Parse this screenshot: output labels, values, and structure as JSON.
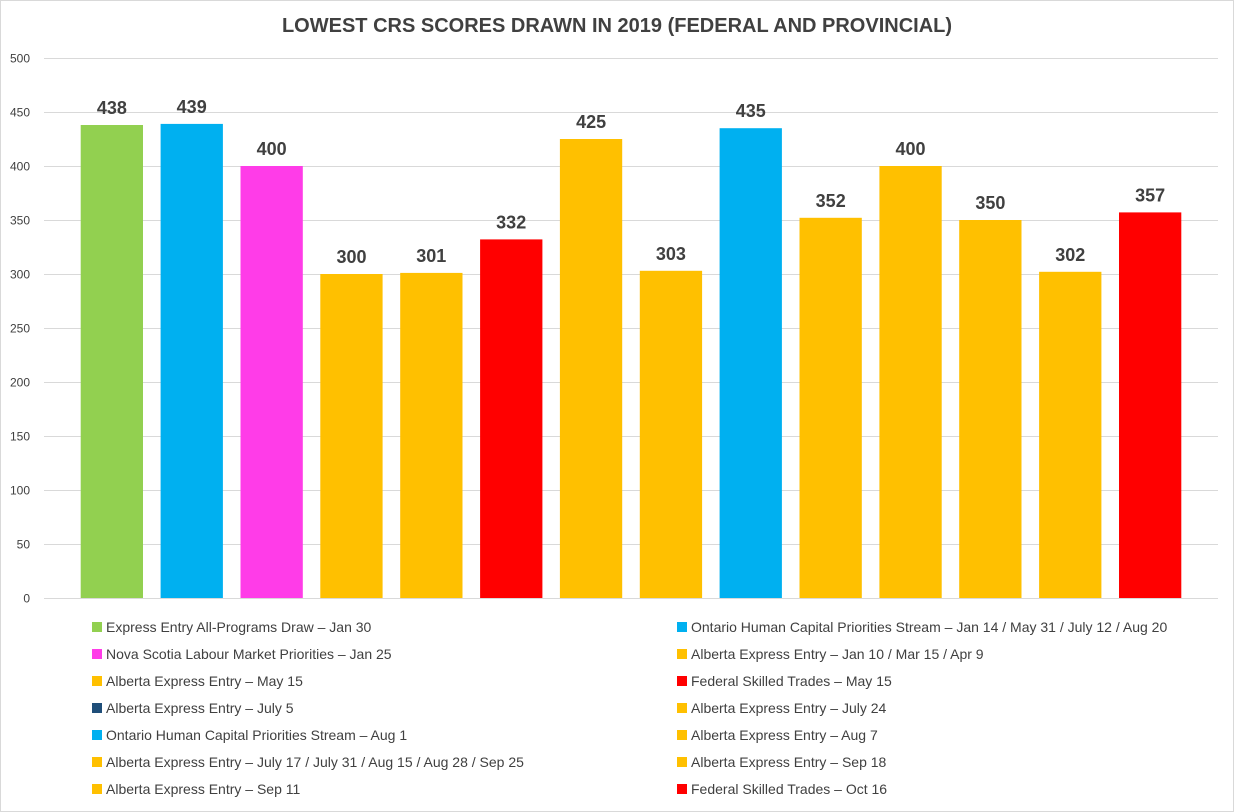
{
  "chart_data": {
    "type": "bar",
    "title": "LOWEST CRS SCORES DRAWN IN 2019 (FEDERAL AND PROVINCIAL)",
    "xlabel": "",
    "ylabel": "",
    "ylim": [
      0,
      500
    ],
    "yticks": [
      0,
      50,
      100,
      150,
      200,
      250,
      300,
      350,
      400,
      450,
      500
    ],
    "grid": true,
    "legend_placement": "bottom",
    "series": [
      {
        "name": "Express Entry All-Programs Draw – Jan 30",
        "value": 438,
        "color": "#92d050"
      },
      {
        "name": "Ontario Human Capital Priorities Stream – Jan 14 / May 31 / July 12 / Aug 20",
        "value": 439,
        "color": "#00b0f0"
      },
      {
        "name": "Nova Scotia Labour Market Priorities – Jan 25",
        "value": 400,
        "color": "#ff3ce8"
      },
      {
        "name": "Alberta Express Entry – Jan 10 / Mar 15 / Apr 9",
        "value": 300,
        "color": "#ffc000"
      },
      {
        "name": "Alberta Express Entry – May 15",
        "value": 301,
        "color": "#ffc000"
      },
      {
        "name": "Federal Skilled Trades – May 15",
        "value": 332,
        "color": "#ff0000"
      },
      {
        "name": "Alberta Express Entry – July 5",
        "value": 425,
        "color": "#ffc000",
        "legend_color": "#1f4e79"
      },
      {
        "name": "Alberta Express Entry – July 24",
        "value": 303,
        "color": "#ffc000"
      },
      {
        "name": "Ontario Human Capital Priorities Stream –  Aug 1",
        "value": 435,
        "color": "#00b0f0"
      },
      {
        "name": "Alberta Express Entry – Aug 7",
        "value": 352,
        "color": "#ffc000"
      },
      {
        "name": "Alberta Express Entry – July 17 / July 31 / Aug 15 / Aug 28 / Sep 25",
        "value": 400,
        "color": "#ffc000"
      },
      {
        "name": "Alberta Express Entry – Sep 18",
        "value": 350,
        "color": "#ffc000"
      },
      {
        "name": "Alberta Express Entry – Sep 11",
        "value": 302,
        "color": "#ffc000"
      },
      {
        "name": "Federal Skilled Trades – Oct 16",
        "value": 357,
        "color": "#ff0000"
      }
    ]
  }
}
